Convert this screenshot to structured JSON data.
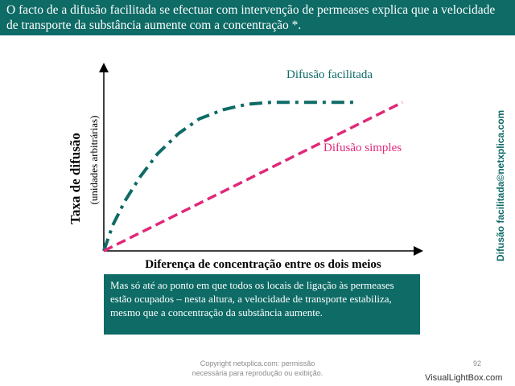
{
  "header": {
    "text": "O facto de a difusão facilitada se efectuar com intervenção de permeases explica que a velocidade de transporte da substância aumente com a concentração *."
  },
  "chart_data": {
    "type": "line",
    "title": "",
    "xlabel": "Diferença de concentração entre os dois meios",
    "ylabel": "Taxa de difusão",
    "ylabel_sub": "(unidades arbitrárias)",
    "xlim": [
      0,
      10
    ],
    "ylim": [
      0,
      10
    ],
    "grid": false,
    "series": [
      {
        "name": "Difusão facilitada",
        "color": "#0e6b66",
        "style": "dashdot",
        "x": [
          0,
          0.3,
          0.7,
          1.2,
          1.8,
          2.5,
          3.2,
          4.0,
          4.8,
          5.6,
          6.5,
          7.5,
          8.5
        ],
        "y": [
          0,
          1.4,
          2.7,
          4.0,
          5.3,
          6.4,
          7.2,
          7.7,
          8.0,
          8.1,
          8.1,
          8.1,
          8.1
        ]
      },
      {
        "name": "Difusão simples",
        "color": "#e0287a",
        "style": "dashed",
        "x": [
          0,
          10
        ],
        "y": [
          0,
          8.1
        ]
      }
    ]
  },
  "callout": {
    "text": "Mas só até ao ponto em que todos os locais de ligação às permeases estão ocupados – nesta altura, a velocidade de transporte estabiliza, mesmo que a concentração da substância aumente."
  },
  "side_label": "Difusão facilitada©netxplica.com",
  "footer": {
    "line1": "Copyright netxplica.com: permissão",
    "line2": "necessária para reprodução ou exibição.",
    "page_number": "92"
  },
  "watermark": "VisualLightBox.com"
}
